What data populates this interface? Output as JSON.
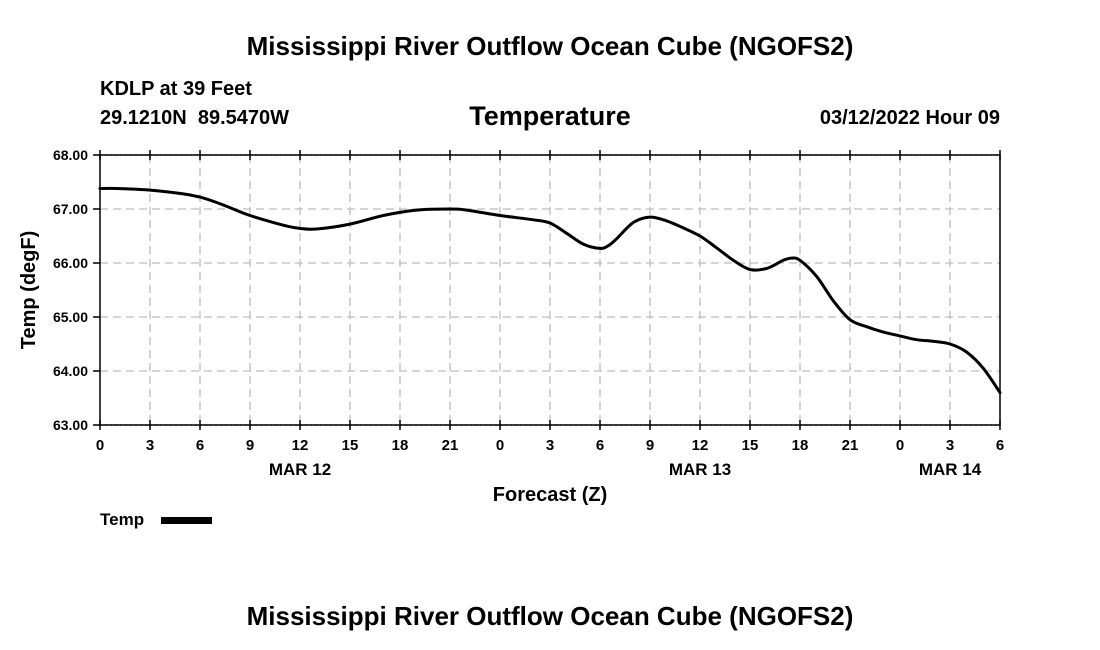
{
  "header": {
    "title": "Mississippi River Outflow Ocean Cube (NGOFS2)",
    "station_line": "KDLP at 39 Feet",
    "coords": "29.1210N  89.5470W",
    "chart_name": "Temperature",
    "datetime": "03/12/2022 Hour 09"
  },
  "footer": {
    "title": "Mississippi River Outflow Ocean Cube (NGOFS2)"
  },
  "legend": {
    "entries": [
      {
        "label": "Temp",
        "color": "#000000"
      }
    ],
    "placement": "bottom-left"
  },
  "chart_data": {
    "type": "line",
    "title": "Temperature",
    "xlabel": "Forecast (Z)",
    "ylabel": "Temp (degF)",
    "x_unit": "forecast hour from 03/12 00Z",
    "xlim": [
      0,
      54
    ],
    "ylim": [
      63,
      68
    ],
    "grid": true,
    "y_ticks": [
      63,
      64,
      65,
      66,
      67,
      68
    ],
    "y_tick_labels": [
      "63.00",
      "64.00",
      "65.00",
      "66.00",
      "67.00",
      "68.00"
    ],
    "x_ticks": [
      0,
      3,
      6,
      9,
      12,
      15,
      18,
      21,
      24,
      27,
      30,
      33,
      36,
      39,
      42,
      45,
      48,
      51,
      54
    ],
    "x_tick_labels": [
      "0",
      "3",
      "6",
      "9",
      "12",
      "15",
      "18",
      "21",
      "0",
      "3",
      "6",
      "9",
      "12",
      "15",
      "18",
      "21",
      "0",
      "3",
      "6"
    ],
    "date_labels": [
      {
        "x": 12,
        "label": "MAR 12"
      },
      {
        "x": 36,
        "label": "MAR 13"
      },
      {
        "x": 51,
        "label": "MAR 14"
      }
    ],
    "series": [
      {
        "name": "Temp",
        "color": "#000000",
        "x": [
          0,
          1,
          3,
          5,
          6,
          7,
          8,
          9,
          11,
          12,
          13,
          15,
          17,
          19,
          21,
          22,
          24,
          26,
          27,
          28,
          29,
          30,
          30.5,
          31,
          32,
          33,
          34,
          35,
          36,
          37,
          38,
          39,
          40,
          41,
          41.5,
          42,
          43,
          44,
          45,
          46,
          47,
          48,
          49,
          50,
          51,
          52,
          53,
          54
        ],
        "y": [
          67.38,
          67.38,
          67.35,
          67.28,
          67.22,
          67.12,
          67.0,
          66.88,
          66.7,
          66.64,
          66.63,
          66.72,
          66.88,
          66.98,
          67.0,
          66.98,
          66.88,
          66.8,
          66.74,
          66.55,
          66.35,
          66.27,
          66.32,
          66.45,
          66.75,
          66.85,
          66.78,
          66.65,
          66.5,
          66.28,
          66.05,
          65.88,
          65.9,
          66.05,
          66.09,
          66.05,
          65.75,
          65.3,
          64.95,
          64.82,
          64.72,
          64.65,
          64.58,
          64.55,
          64.5,
          64.35,
          64.05,
          63.6
        ]
      }
    ]
  }
}
